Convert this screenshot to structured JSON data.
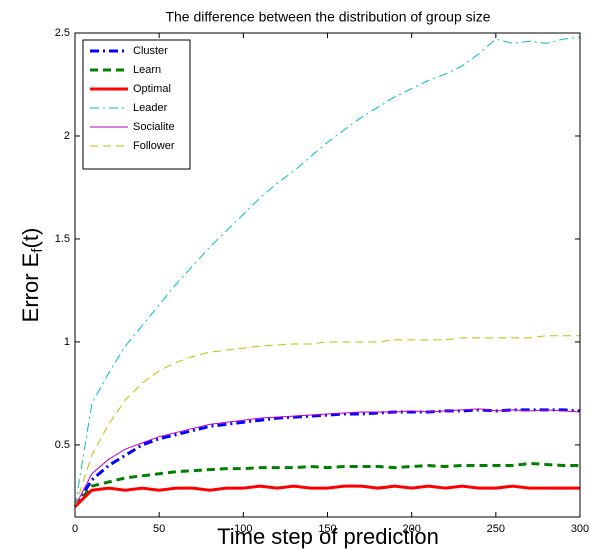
{
  "chart_data": {
    "type": "line",
    "title": "The difference between the distribution of group size",
    "xlabel": "Time step of prediction",
    "ylabel": [
      "Error E",
      "f",
      "(t)"
    ],
    "x": [
      0,
      10,
      20,
      30,
      40,
      50,
      60,
      70,
      80,
      90,
      100,
      110,
      120,
      130,
      140,
      150,
      160,
      170,
      180,
      190,
      200,
      210,
      220,
      230,
      240,
      250,
      260,
      270,
      280,
      290,
      300
    ],
    "xlim": [
      0,
      300
    ],
    "xticks": [
      0,
      50,
      100,
      150,
      200,
      250,
      300
    ],
    "ylim": [
      0.15,
      2.5
    ],
    "yticks": [
      0.5,
      1,
      1.5,
      2,
      2.5
    ],
    "legend": "upper-left",
    "series": [
      {
        "name": "Cluster",
        "color": "#0000ff",
        "style": "dashdot",
        "width": 3,
        "values": [
          0.2,
          0.33,
          0.4,
          0.45,
          0.5,
          0.53,
          0.55,
          0.57,
          0.59,
          0.6,
          0.61,
          0.62,
          0.63,
          0.635,
          0.64,
          0.645,
          0.65,
          0.65,
          0.655,
          0.66,
          0.66,
          0.66,
          0.665,
          0.665,
          0.67,
          0.665,
          0.67,
          0.67,
          0.67,
          0.67,
          0.665
        ]
      },
      {
        "name": "Learn",
        "color": "#008000",
        "style": "dashed",
        "width": 3,
        "values": [
          0.2,
          0.3,
          0.32,
          0.34,
          0.35,
          0.36,
          0.37,
          0.375,
          0.38,
          0.385,
          0.385,
          0.39,
          0.39,
          0.39,
          0.395,
          0.39,
          0.395,
          0.395,
          0.395,
          0.39,
          0.395,
          0.4,
          0.395,
          0.4,
          0.4,
          0.4,
          0.4,
          0.41,
          0.405,
          0.4,
          0.4
        ]
      },
      {
        "name": "Optimal",
        "color": "#ff0000",
        "style": "solid",
        "width": 3,
        "values": [
          0.2,
          0.28,
          0.29,
          0.28,
          0.29,
          0.28,
          0.29,
          0.29,
          0.28,
          0.29,
          0.29,
          0.3,
          0.29,
          0.3,
          0.29,
          0.29,
          0.3,
          0.3,
          0.29,
          0.3,
          0.29,
          0.3,
          0.29,
          0.3,
          0.29,
          0.29,
          0.3,
          0.29,
          0.29,
          0.29,
          0.29
        ]
      },
      {
        "name": "Leader",
        "color": "#00bfbf",
        "style": "dashdot",
        "width": 1,
        "values": [
          0.2,
          0.7,
          0.85,
          0.98,
          1.08,
          1.18,
          1.28,
          1.37,
          1.46,
          1.54,
          1.62,
          1.7,
          1.77,
          1.83,
          1.9,
          1.97,
          2.03,
          2.09,
          2.14,
          2.19,
          2.23,
          2.27,
          2.3,
          2.34,
          2.4,
          2.47,
          2.45,
          2.46,
          2.45,
          2.47,
          2.48
        ]
      },
      {
        "name": "Socialite",
        "color": "#bf00bf",
        "style": "solid",
        "width": 1,
        "values": [
          0.2,
          0.36,
          0.43,
          0.48,
          0.51,
          0.54,
          0.56,
          0.58,
          0.6,
          0.61,
          0.62,
          0.63,
          0.635,
          0.64,
          0.645,
          0.65,
          0.655,
          0.66,
          0.66,
          0.66,
          0.665,
          0.66,
          0.665,
          0.67,
          0.675,
          0.665,
          0.67,
          0.665,
          0.67,
          0.665,
          0.66
        ]
      },
      {
        "name": "Follower",
        "color": "#bfbf00",
        "style": "dashed",
        "width": 1,
        "values": [
          0.2,
          0.45,
          0.6,
          0.72,
          0.8,
          0.86,
          0.9,
          0.93,
          0.95,
          0.96,
          0.97,
          0.98,
          0.985,
          0.99,
          0.99,
          1.0,
          1.0,
          1.0,
          1.0,
          1.01,
          1.01,
          1.01,
          1.01,
          1.02,
          1.02,
          1.02,
          1.02,
          1.02,
          1.03,
          1.03,
          1.03
        ]
      }
    ]
  }
}
